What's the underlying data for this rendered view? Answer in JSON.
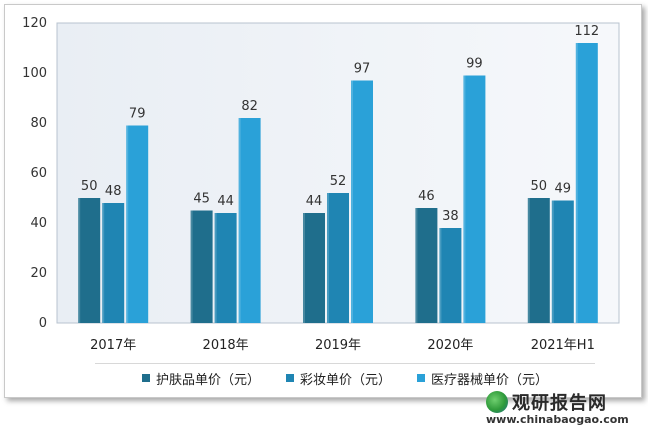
{
  "chart_data": {
    "type": "bar",
    "categories": [
      "2017年",
      "2018年",
      "2019年",
      "2020年",
      "2021年H1"
    ],
    "series": [
      {
        "name": "护肤品单价（元）",
        "values": [
          50,
          45,
          44,
          46,
          50
        ],
        "color": "#1f6e8c"
      },
      {
        "name": "彩妆单价（元）",
        "values": [
          48,
          44,
          52,
          38,
          49
        ],
        "color": "#1f85b3"
      },
      {
        "name": "医疗器械单价（元）",
        "values": [
          79,
          82,
          97,
          99,
          112
        ],
        "color": "#2aa1d8"
      }
    ],
    "y_ticks": [
      "0",
      "20",
      "40",
      "60",
      "80",
      "100",
      "120"
    ],
    "ylim": [
      0,
      120
    ],
    "grid": false,
    "legend_position": "bottom"
  },
  "watermark": {
    "title": "观研报告网",
    "url": "www.chinabaogao.com"
  }
}
